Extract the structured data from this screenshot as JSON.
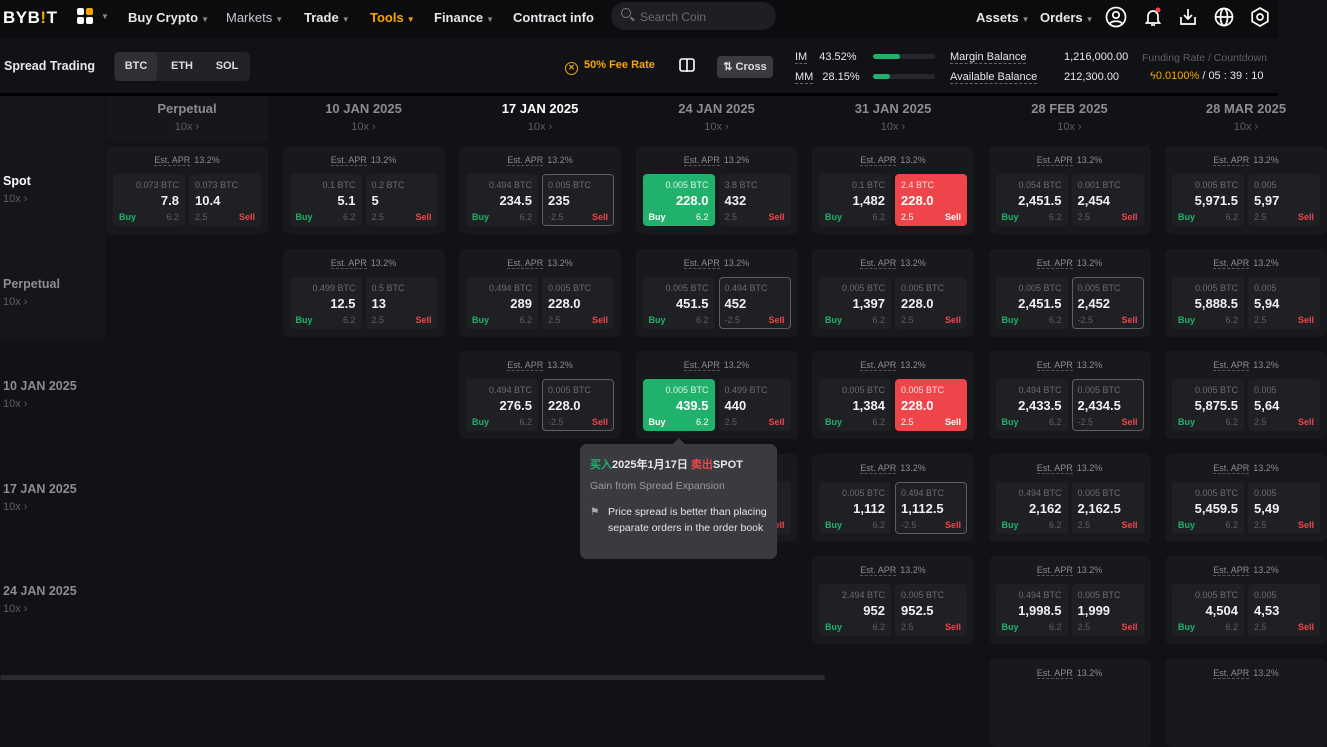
{
  "nav": {
    "logo": "BYBIT",
    "items": [
      {
        "label": "Buy Crypto"
      },
      {
        "label": "Markets"
      },
      {
        "label": "Trade"
      },
      {
        "label": "Tools"
      },
      {
        "label": "Finance"
      },
      {
        "label": "Contract info"
      }
    ],
    "search_placeholder": "Search Coin",
    "right": [
      {
        "label": "Assets"
      },
      {
        "label": "Orders"
      }
    ],
    "icons": [
      "user-icon",
      "bell-icon",
      "download-icon",
      "globe-icon",
      "settings-icon"
    ],
    "active_color": "#f7a600"
  },
  "sub": {
    "title": "Spread Trading",
    "coins": [
      "BTC",
      "ETH",
      "SOL"
    ],
    "selected_coin": "BTC",
    "fee": "50% Fee Rate",
    "cross": "Cross",
    "im_label": "IM",
    "im": "43.52%",
    "im_value": 43.52,
    "mm_label": "MM",
    "mm": "28.15%",
    "mm_value": 28.15,
    "margin_label": "Margin Balance",
    "margin": "1,216,000.00",
    "avail_label": "Available Balance",
    "avail": "212,300.00",
    "funding_label": "Funding Rate / Countdown",
    "funding_rate": "0.0100%",
    "countdown": "/ 05 : 39 : 10"
  },
  "grid": {
    "columns": [
      {
        "title": "Perpetual",
        "lev": "10x ›"
      },
      {
        "title": "10 JAN 2025",
        "lev": "10x ›"
      },
      {
        "title": "17 JAN 2025",
        "lev": "10x ›"
      },
      {
        "title": "24 JAN 2025",
        "lev": "10x ›"
      },
      {
        "title": "31 JAN 2025",
        "lev": "10x ›"
      },
      {
        "title": "28 FEB 2025",
        "lev": "10x ›"
      },
      {
        "title": "28 MAR 2025",
        "lev": "10x ›"
      }
    ],
    "apr_label": "Est. APR",
    "buy_label": "Buy",
    "sell_label": "Sell",
    "rows": [
      {
        "label": "Spot",
        "lev": "10x ›",
        "cells": [
          {
            "apr": "13.2%",
            "buy": {
              "q": "0.073 BTC",
              "p": "7.8",
              "f": "6.2"
            },
            "sell": {
              "q": "0.073 BTC",
              "p": "10.4",
              "f": "2.5"
            }
          },
          {
            "apr": "13.2%",
            "buy": {
              "q": "0.1 BTC",
              "p": "5.1",
              "f": "6.2"
            },
            "sell": {
              "q": "0.2 BTC",
              "p": "5",
              "f": "2.5"
            }
          },
          {
            "apr": "13.2%",
            "buy": {
              "q": "0.494 BTC",
              "p": "234.5",
              "f": "6.2"
            },
            "sell": {
              "q": "0.005 BTC",
              "p": "235",
              "f": "-2.5",
              "state": "outline"
            }
          },
          {
            "apr": "13.2%",
            "buy": {
              "q": "0.005 BTC",
              "p": "228.0",
              "f": "6.2",
              "state": "green"
            },
            "sell": {
              "q": "3.8 BTC",
              "p": "432",
              "f": "2.5"
            }
          },
          {
            "apr": "13.2%",
            "buy": {
              "q": "0.1 BTC",
              "p": "1,482",
              "f": "6.2"
            },
            "sell": {
              "q": "2.4 BTC",
              "p": "228.0",
              "f": "2.5",
              "state": "red"
            }
          },
          {
            "apr": "13.2%",
            "buy": {
              "q": "0.054 BTC",
              "p": "2,451.5",
              "f": "6.2"
            },
            "sell": {
              "q": "0.001 BTC",
              "p": "2,454",
              "f": "2.5"
            }
          },
          {
            "apr": "13.2%",
            "buy": {
              "q": "0.005 BTC",
              "p": "5,971.5",
              "f": "6.2"
            },
            "sell": {
              "q": "0.005",
              "p": "5,97",
              "f": "2.5"
            }
          }
        ]
      },
      {
        "label": "Perpetual",
        "lev": "10x ›",
        "cells": [
          null,
          {
            "apr": "13.2%",
            "buy": {
              "q": "0.499 BTC",
              "p": "12.5",
              "f": "6.2"
            },
            "sell": {
              "q": "0.5 BTC",
              "p": "13",
              "f": "2.5"
            }
          },
          {
            "apr": "13.2%",
            "buy": {
              "q": "0.494 BTC",
              "p": "289",
              "f": "6.2"
            },
            "sell": {
              "q": "0.005 BTC",
              "p": "228.0",
              "f": "2.5"
            }
          },
          {
            "apr": "13.2%",
            "buy": {
              "q": "0.005 BTC",
              "p": "451.5",
              "f": "6.2"
            },
            "sell": {
              "q": "0.494 BTC",
              "p": "452",
              "f": "-2.5",
              "state": "outline"
            }
          },
          {
            "apr": "13.2%",
            "buy": {
              "q": "0.005 BTC",
              "p": "1,397",
              "f": "6.2"
            },
            "sell": {
              "q": "0.005 BTC",
              "p": "228.0",
              "f": "2.5"
            }
          },
          {
            "apr": "13.2%",
            "buy": {
              "q": "0.005 BTC",
              "p": "2,451.5",
              "f": "6.2"
            },
            "sell": {
              "q": "0.005 BTC",
              "p": "2,452",
              "f": "-2.5",
              "state": "outline"
            }
          },
          {
            "apr": "13.2%",
            "buy": {
              "q": "0.005 BTC",
              "p": "5,888.5",
              "f": "6.2"
            },
            "sell": {
              "q": "0.005",
              "p": "5,94",
              "f": "2.5"
            }
          }
        ]
      },
      {
        "label": "10 JAN 2025",
        "lev": "10x ›",
        "cells": [
          null,
          null,
          {
            "apr": "13.2%",
            "buy": {
              "q": "0.494 BTC",
              "p": "276.5",
              "f": "6.2"
            },
            "sell": {
              "q": "0.005 BTC",
              "p": "228.0",
              "f": "-2.5",
              "state": "outline"
            }
          },
          {
            "apr": "13.2%",
            "buy": {
              "q": "0.005 BTC",
              "p": "439.5",
              "f": "6.2",
              "state": "green"
            },
            "sell": {
              "q": "0.499 BTC",
              "p": "440",
              "f": "2.5"
            }
          },
          {
            "apr": "13.2%",
            "buy": {
              "q": "0.005 BTC",
              "p": "1,384",
              "f": "6.2"
            },
            "sell": {
              "q": "0.005 BTC",
              "p": "228.0",
              "f": "2.5",
              "state": "red"
            }
          },
          {
            "apr": "13.2%",
            "buy": {
              "q": "0.494 BTC",
              "p": "2,433.5",
              "f": "6.2"
            },
            "sell": {
              "q": "0.005 BTC",
              "p": "2,434.5",
              "f": "-2.5",
              "state": "outline"
            }
          },
          {
            "apr": "13.2%",
            "buy": {
              "q": "0.005 BTC",
              "p": "5,875.5",
              "f": "6.2"
            },
            "sell": {
              "q": "0.005",
              "p": "5,64",
              "f": "2.5"
            }
          }
        ]
      },
      {
        "label": "17 JAN 2025",
        "lev": "10x ›",
        "cells": [
          null,
          null,
          null,
          {
            "covered": true
          },
          {
            "apr": "13.2%",
            "buy": {
              "q": "0.005 BTC",
              "p": "1,112",
              "f": "6.2"
            },
            "sell": {
              "q": "0.494 BTC",
              "p": "1,112.5",
              "f": "-2.5",
              "state": "outline"
            }
          },
          {
            "apr": "13.2%",
            "buy": {
              "q": "0.494 BTC",
              "p": "2,162",
              "f": "6.2"
            },
            "sell": {
              "q": "0.005 BTC",
              "p": "2,162.5",
              "f": "2.5"
            }
          },
          {
            "apr": "13.2%",
            "buy": {
              "q": "0.005 BTC",
              "p": "5,459.5",
              "f": "6.2"
            },
            "sell": {
              "q": "0.005",
              "p": "5,49",
              "f": "2.5"
            }
          }
        ]
      },
      {
        "label": "24 JAN 2025",
        "lev": "10x ›",
        "cells": [
          null,
          null,
          null,
          null,
          {
            "apr": "13.2%",
            "buy": {
              "q": "2.494 BTC",
              "p": "952",
              "f": "6.2"
            },
            "sell": {
              "q": "0.005 BTC",
              "p": "952.5",
              "f": "2.5"
            }
          },
          {
            "apr": "13.2%",
            "buy": {
              "q": "0.494 BTC",
              "p": "1,998.5",
              "f": "6.2"
            },
            "sell": {
              "q": "0.005 BTC",
              "p": "1,999",
              "f": "2.5"
            }
          },
          {
            "apr": "13.2%",
            "buy": {
              "q": "0.005 BTC",
              "p": "4,504",
              "f": "6.2"
            },
            "sell": {
              "q": "0.005",
              "p": "4,53",
              "f": "2.5"
            }
          }
        ]
      },
      {
        "label": "",
        "lev": "",
        "cells": [
          null,
          null,
          null,
          null,
          null,
          {
            "apr": "13.2%"
          },
          {
            "apr": "13.2%"
          }
        ]
      }
    ]
  },
  "tooltip": {
    "buy_word": "买入",
    "buy_target": "2025年1月17日",
    "sell_word": "卖出",
    "sell_target": "SPOT",
    "subtitle": "Gain from Spread Expansion",
    "note": "Price spread is better than placing separate orders in the order book"
  }
}
